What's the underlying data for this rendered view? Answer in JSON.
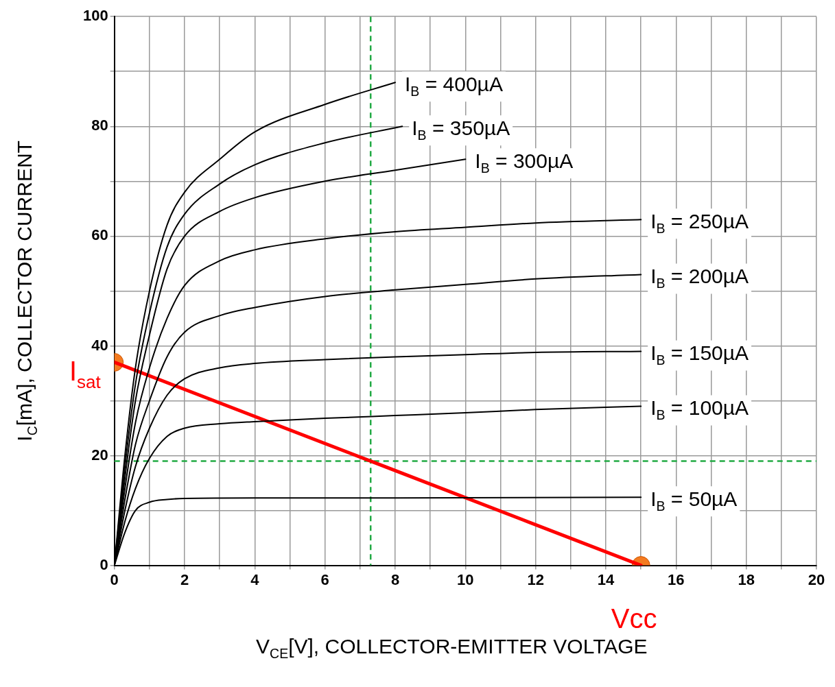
{
  "chart_data": {
    "type": "line",
    "xlabel": "V$_{CE}$[V], COLLECTOR-EMITTER VOLTAGE",
    "ylabel": "I$_{C}$[mA], COLLECTOR CURRENT",
    "xlim": [
      0,
      20
    ],
    "ylim": [
      0,
      100
    ],
    "xticks": [
      0,
      {
        "value": 1,
        "label": null
      },
      2,
      {
        "value": 3,
        "label": null
      },
      4,
      {
        "value": 5,
        "label": null
      },
      6,
      {
        "value": 7,
        "label": null
      },
      8,
      {
        "value": 9,
        "label": null
      },
      10,
      {
        "value": 11,
        "label": null
      },
      12,
      {
        "value": 13,
        "label": null
      },
      14,
      {
        "value": 15,
        "label": null
      },
      16,
      {
        "value": 17,
        "label": null
      },
      18,
      {
        "value": 19,
        "label": null
      },
      20
    ],
    "yticks": [
      0,
      {
        "value": 10,
        "label": null
      },
      20,
      {
        "value": 30,
        "label": null
      },
      40,
      {
        "value": 50,
        "label": null
      },
      60,
      {
        "value": 70,
        "label": null
      },
      80,
      {
        "value": 90,
        "label": null
      },
      100
    ],
    "grid": true,
    "legend": false,
    "marker": "none",
    "line_style": "solid",
    "series": [
      {
        "name": "I$_{B}$ = 400µA",
        "color": "#000000",
        "x": [
          0,
          0.3,
          0.6,
          1,
          1.5,
          2,
          3,
          4,
          6,
          8
        ],
        "values": [
          0,
          20,
          36,
          50,
          62,
          68,
          74,
          79,
          84,
          88
        ]
      },
      {
        "name": "I$_{B}$ = 350µA",
        "color": "#000000",
        "x": [
          0,
          0.3,
          0.6,
          1,
          1.5,
          2,
          3,
          4,
          6,
          8.2
        ],
        "values": [
          0,
          18,
          33,
          46,
          58,
          64,
          69.5,
          73,
          77,
          80
        ]
      },
      {
        "name": "I$_{B}$ = 300µA",
        "color": "#000000",
        "x": [
          0,
          0.3,
          0.6,
          1,
          1.5,
          2,
          3,
          4,
          6,
          8,
          10
        ],
        "values": [
          0,
          16,
          30,
          42,
          54,
          60,
          64.5,
          67,
          70,
          72,
          74
        ]
      },
      {
        "name": "I$_{B}$ = 250µA",
        "color": "#000000",
        "x": [
          0,
          0.3,
          0.6,
          1,
          1.5,
          2,
          3,
          4,
          6,
          8,
          10,
          12,
          15
        ],
        "values": [
          0,
          14,
          26,
          36,
          45,
          51,
          55.5,
          57.5,
          59.5,
          60.8,
          61.6,
          62.4,
          63
        ]
      },
      {
        "name": "I$_{B}$ = 200µA",
        "color": "#000000",
        "x": [
          0,
          0.3,
          0.6,
          1,
          1.5,
          2,
          3,
          4,
          6,
          8,
          10,
          12,
          15
        ],
        "values": [
          0,
          12,
          22,
          30,
          38,
          42.5,
          45.5,
          47,
          49,
          50.2,
          51.2,
          52.2,
          53
        ]
      },
      {
        "name": "I$_{B}$ = 150µA",
        "color": "#000000",
        "x": [
          0,
          0.3,
          0.6,
          1,
          1.5,
          2,
          3,
          4,
          6,
          8,
          10,
          12,
          15
        ],
        "values": [
          0,
          10,
          18,
          25,
          31,
          34,
          36,
          36.8,
          37.5,
          38,
          38.4,
          38.8,
          39
        ]
      },
      {
        "name": "I$_{B}$ = 100µA",
        "color": "#000000",
        "x": [
          0,
          0.3,
          0.6,
          1,
          1.5,
          2,
          3,
          4,
          6,
          8,
          10,
          12,
          15
        ],
        "values": [
          0,
          8,
          14,
          19.5,
          23.5,
          25,
          25.8,
          26.2,
          26.8,
          27.3,
          27.8,
          28.4,
          29
        ]
      },
      {
        "name": "I$_{B}$ = 50µA",
        "color": "#000000",
        "x": [
          0,
          0.3,
          0.6,
          1,
          1.5,
          2,
          4,
          8,
          15
        ],
        "values": [
          0,
          6,
          10,
          11.5,
          12,
          12.2,
          12.3,
          12.3,
          12.4
        ]
      },
      {
        "type": "line",
        "color": "#ff0000",
        "x": [
          0,
          15
        ],
        "values": [
          37,
          0
        ]
      },
      {
        "type": "scatter",
        "marker": "circle",
        "color": "#f47b20",
        "x": [
          0,
          15
        ],
        "values": [
          37,
          0
        ]
      }
    ],
    "ref_lines": [
      {
        "axis": "x",
        "value": 7.3,
        "color": "#22aa44",
        "line_style": "dashed"
      },
      {
        "axis": "y",
        "value": 19,
        "color": "#22aa44",
        "line_style": "dashed"
      }
    ],
    "annotations": [
      {
        "text": "I$_{sat}$",
        "x": 0,
        "y": 37
      },
      {
        "text": "Vcc",
        "x": 15,
        "y": 0
      }
    ]
  }
}
